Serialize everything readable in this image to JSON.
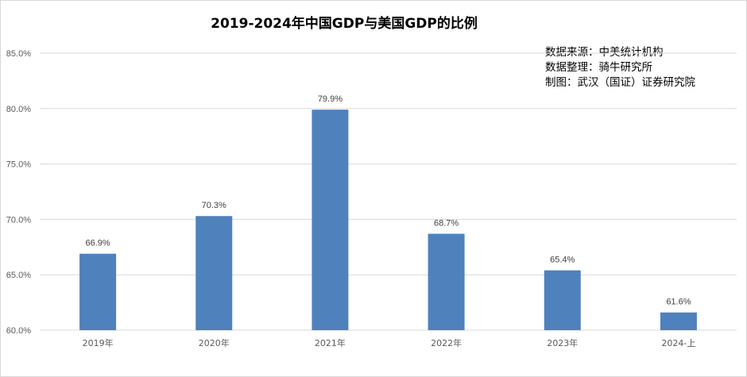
{
  "chart_data": {
    "type": "bar",
    "title": "2019-2024年中国GDP与美国GDP的比例",
    "categories": [
      "2019年",
      "2020年",
      "2021年",
      "2022年",
      "2023年",
      "2024-上"
    ],
    "values": [
      66.9,
      70.3,
      79.9,
      68.7,
      65.4,
      61.6
    ],
    "data_labels": [
      "66.9%",
      "70.3%",
      "79.9%",
      "68.7%",
      "65.4%",
      "61.6%"
    ],
    "ylim": [
      60,
      85
    ],
    "yticks": [
      60,
      65,
      70,
      75,
      80,
      85
    ],
    "ytick_labels": [
      "60.0%",
      "65.0%",
      "70.0%",
      "75.0%",
      "80.0%",
      "85.0%"
    ],
    "grid": true,
    "bar_color": "#4f81bd",
    "annotations": [
      "数据来源：中美统计机构",
      "数据整理：骑牛研究所",
      "制图：武汉（国证）证券研究院"
    ]
  }
}
